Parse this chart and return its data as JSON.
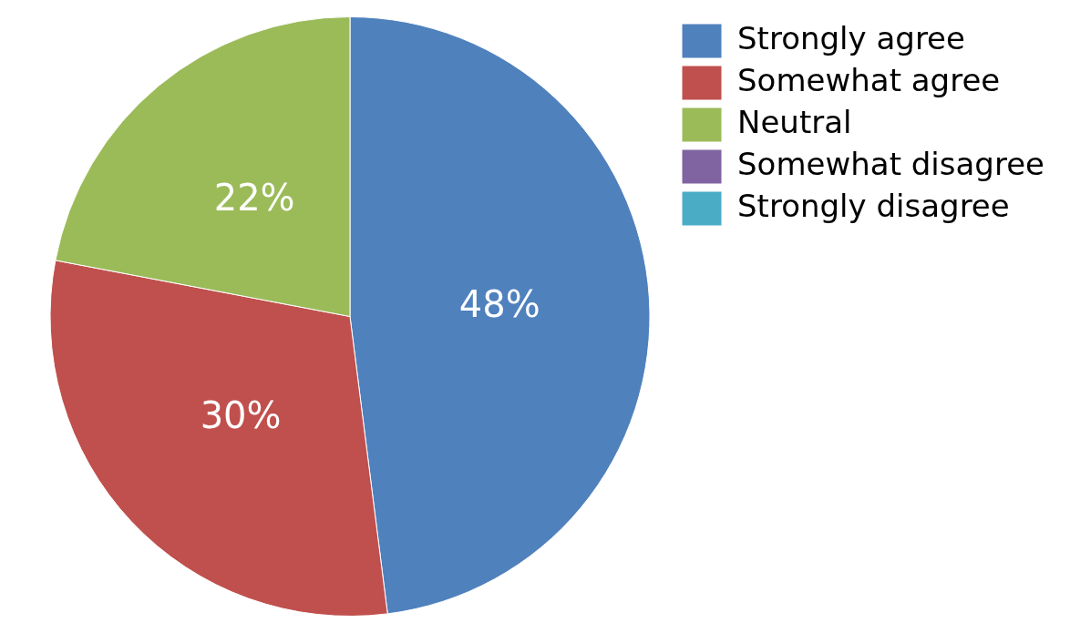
{
  "chart_data": {
    "type": "pie",
    "categories": [
      "Strongly agree",
      "Somewhat agree",
      "Neutral",
      "Somewhat disagree",
      "Strongly disagree"
    ],
    "values": [
      48,
      30,
      22,
      0,
      0
    ],
    "colors": [
      "#4f81bd",
      "#c0504d",
      "#9bbb59",
      "#8064a2",
      "#4bacc6"
    ],
    "value_labels": [
      "48%",
      "30%",
      "22%",
      null,
      null
    ],
    "legend": "right"
  }
}
